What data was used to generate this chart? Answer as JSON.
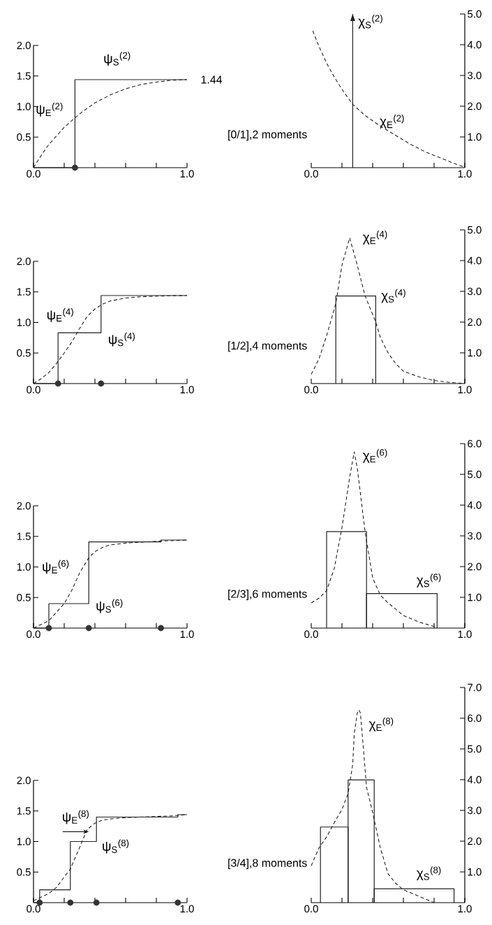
{
  "chart_data": [
    {
      "type": "line",
      "xlim": [
        0,
        1
      ],
      "ylim": [
        0,
        2
      ],
      "xticks": [
        {
          "value": 0,
          "label": "0.0"
        },
        {
          "value": 0.2,
          "label": null
        },
        {
          "value": 0.4,
          "label": null
        },
        {
          "value": 0.6,
          "label": null
        },
        {
          "value": 0.8,
          "label": null
        },
        {
          "value": 1,
          "label": "1.0"
        }
      ],
      "yticks": [
        {
          "value": 0.5,
          "label": "0.5"
        },
        {
          "value": 1,
          "label": "1.0"
        },
        {
          "value": 1.5,
          "label": "1.5"
        },
        {
          "value": 2,
          "label": "2.0"
        }
      ],
      "series": [
        {
          "name": "ψ$_{S}$$^{(2)}$",
          "type": "step",
          "color": "#222222",
          "line_style": "solid",
          "x": [
            0,
            0.27,
            1
          ],
          "values": [
            0,
            1.44,
            1.44
          ]
        },
        {
          "name": "ψ$_{E}$$^{(2)}$",
          "color": "#222222",
          "line_style": "dashed",
          "x": [
            0,
            0.05,
            0.1,
            0.2,
            0.3,
            0.4,
            0.5,
            0.6,
            0.7,
            0.8,
            0.9,
            1.0
          ],
          "values": [
            0,
            0.2,
            0.38,
            0.66,
            0.88,
            1.06,
            1.19,
            1.29,
            1.36,
            1.4,
            1.43,
            1.44
          ]
        },
        {
          "type": "scatter",
          "color": "#333333",
          "marker": "circle",
          "x": [
            0.27
          ],
          "values": [
            0
          ]
        }
      ],
      "annotations": [
        {
          "text": "1.44",
          "x": 1.0,
          "y": 1.44
        }
      ]
    },
    {
      "type": "line",
      "xlim": [
        0,
        1
      ],
      "ylim": [
        0,
        5
      ],
      "xticks": [
        {
          "value": 0,
          "label": "0.0"
        },
        {
          "value": 0.2,
          "label": null
        },
        {
          "value": 0.4,
          "label": null
        },
        {
          "value": 0.6,
          "label": null
        },
        {
          "value": 0.8,
          "label": null
        },
        {
          "value": 1,
          "label": "1.0"
        }
      ],
      "yticks": [
        {
          "value": 1,
          "label": "1.0"
        },
        {
          "value": 2,
          "label": "2.0"
        },
        {
          "value": 3,
          "label": "3.0"
        },
        {
          "value": 4,
          "label": "4.0"
        },
        {
          "value": 5,
          "label": "5.0"
        }
      ],
      "series": [
        {
          "name": "χ$_{E}$$^{(2)}$",
          "color": "#222222",
          "line_style": "dashed",
          "x": [
            0.01,
            0.05,
            0.1,
            0.15,
            0.2,
            0.27,
            0.35,
            0.45,
            0.55,
            0.65,
            0.75,
            0.85,
            0.95,
            1.0
          ],
          "values": [
            4.45,
            3.95,
            3.4,
            2.95,
            2.55,
            2.06,
            1.7,
            1.35,
            1.05,
            0.75,
            0.5,
            0.3,
            0.1,
            0.02
          ]
        }
      ],
      "ref_lines": [
        {
          "axis": "x",
          "value": 0.27,
          "label": "χ$_{S}$$^{(2)}$",
          "color": "#222222",
          "line_style": "solid"
        }
      ],
      "annotations": [
        "[0/1],2 moments"
      ]
    },
    {
      "type": "line",
      "xlim": [
        0,
        1
      ],
      "ylim": [
        0,
        2
      ],
      "xticks": [
        {
          "value": 0,
          "label": "0.0"
        },
        {
          "value": 0.2,
          "label": null
        },
        {
          "value": 0.4,
          "label": null
        },
        {
          "value": 0.6,
          "label": null
        },
        {
          "value": 0.8,
          "label": null
        },
        {
          "value": 1,
          "label": "1.0"
        }
      ],
      "yticks": [
        {
          "value": 0.5,
          "label": "0.5"
        },
        {
          "value": 1,
          "label": "1.0"
        },
        {
          "value": 1.5,
          "label": "1.5"
        },
        {
          "value": 2,
          "label": "2.0"
        }
      ],
      "series": [
        {
          "name": "ψ$_{S}$$^{(4)}$",
          "type": "step",
          "color": "#222222",
          "line_style": "solid",
          "x": [
            0,
            0.16,
            0.44,
            1
          ],
          "values": [
            0,
            0.83,
            1.44,
            1.44
          ]
        },
        {
          "name": "ψ$_{E}$$^{(4)}$",
          "color": "#222222",
          "line_style": "dashed",
          "x": [
            0,
            0.05,
            0.1,
            0.15,
            0.2,
            0.25,
            0.3,
            0.35,
            0.4,
            0.45,
            0.5,
            0.6,
            0.7,
            0.8,
            1.0
          ],
          "values": [
            0,
            0.08,
            0.18,
            0.33,
            0.5,
            0.68,
            0.9,
            1.1,
            1.22,
            1.3,
            1.35,
            1.4,
            1.42,
            1.43,
            1.44
          ]
        },
        {
          "type": "scatter",
          "color": "#333333",
          "marker": "circle",
          "x": [
            0.16,
            0.44
          ],
          "values": [
            0,
            0
          ]
        }
      ]
    },
    {
      "type": "line",
      "xlim": [
        0,
        1
      ],
      "ylim": [
        0,
        5
      ],
      "xticks": [
        {
          "value": 0,
          "label": "0.0"
        },
        {
          "value": 0.2,
          "label": null
        },
        {
          "value": 0.4,
          "label": null
        },
        {
          "value": 0.6,
          "label": null
        },
        {
          "value": 0.8,
          "label": null
        },
        {
          "value": 1,
          "label": "1.0"
        }
      ],
      "yticks": [
        {
          "value": 1,
          "label": "1.0"
        },
        {
          "value": 2,
          "label": "2.0"
        },
        {
          "value": 3,
          "label": "3.0"
        },
        {
          "value": 4,
          "label": "4.0"
        },
        {
          "value": 5,
          "label": "5.0"
        }
      ],
      "series": [
        {
          "name": "χ$_{E}$$^{(4)}$",
          "color": "#222222",
          "line_style": "dashed",
          "x": [
            0,
            0.05,
            0.1,
            0.16,
            0.2,
            0.25,
            0.3,
            0.35,
            0.42,
            0.45,
            0.5,
            0.55,
            0.6,
            0.7,
            0.8,
            0.9,
            1.0
          ],
          "values": [
            0.3,
            0.8,
            1.56,
            2.6,
            3.85,
            4.74,
            3.85,
            2.86,
            2.0,
            1.5,
            1.0,
            0.65,
            0.4,
            0.22,
            0.1,
            0.04,
            0
          ]
        },
        {
          "name": "χ$_{S}$$^{(4)}$",
          "type": "histogram",
          "color": "#222222",
          "bins": [
            0.16,
            0.42
          ],
          "values": [
            2.85
          ]
        }
      ],
      "annotations": [
        "[1/2],4 moments"
      ]
    },
    {
      "type": "line",
      "xlim": [
        0,
        1
      ],
      "ylim": [
        0,
        2
      ],
      "xticks": [
        {
          "value": 0,
          "label": "0.0"
        },
        {
          "value": 0.2,
          "label": null
        },
        {
          "value": 0.4,
          "label": null
        },
        {
          "value": 0.6,
          "label": null
        },
        {
          "value": 0.8,
          "label": null
        },
        {
          "value": 1,
          "label": "1.0"
        }
      ],
      "yticks": [
        {
          "value": 0.5,
          "label": "0.5"
        },
        {
          "value": 1,
          "label": "1.0"
        },
        {
          "value": 1.5,
          "label": "1.5"
        },
        {
          "value": 2,
          "label": "2.0"
        }
      ],
      "series": [
        {
          "name": "ψ$_{S}$$^{(6)}$",
          "type": "step",
          "color": "#222222",
          "line_style": "solid",
          "x": [
            0,
            0.1,
            0.36,
            0.83,
            1
          ],
          "values": [
            0,
            0.4,
            1.41,
            1.44,
            1.44
          ]
        },
        {
          "name": "ψ$_{E}$$^{(6)}$",
          "color": "#222222",
          "line_style": "dashed",
          "x": [
            0,
            0.1,
            0.2,
            0.25,
            0.3,
            0.36,
            0.4,
            0.45,
            0.5,
            0.6,
            0.8,
            0.9,
            1.0
          ],
          "values": [
            0,
            0.12,
            0.4,
            0.62,
            0.9,
            1.15,
            1.25,
            1.32,
            1.36,
            1.39,
            1.42,
            1.43,
            1.44
          ]
        },
        {
          "type": "scatter",
          "color": "#333333",
          "marker": "circle",
          "x": [
            0.1,
            0.36,
            0.83
          ],
          "values": [
            0,
            0,
            0
          ]
        }
      ]
    },
    {
      "type": "line",
      "xlim": [
        0,
        1
      ],
      "ylim": [
        0,
        6
      ],
      "xticks": [
        {
          "value": 0,
          "label": "0.0"
        },
        {
          "value": 0.2,
          "label": null
        },
        {
          "value": 0.4,
          "label": null
        },
        {
          "value": 0.6,
          "label": null
        },
        {
          "value": 0.8,
          "label": null
        },
        {
          "value": 1,
          "label": "1.0"
        }
      ],
      "yticks": [
        {
          "value": 1,
          "label": "1.0"
        },
        {
          "value": 2,
          "label": "2.0"
        },
        {
          "value": 3,
          "label": "3.0"
        },
        {
          "value": 4,
          "label": "4.0"
        },
        {
          "value": 5,
          "label": "5.0"
        },
        {
          "value": 6,
          "label": "6.0"
        }
      ],
      "series": [
        {
          "name": "χ$_{E}$$^{(6)}$",
          "color": "#222222",
          "line_style": "dashed",
          "x": [
            0,
            0.05,
            0.1,
            0.15,
            0.2,
            0.25,
            0.28,
            0.3,
            0.35,
            0.4,
            0.45,
            0.5,
            0.6,
            0.7,
            0.8,
            0.82
          ],
          "values": [
            0.82,
            0.97,
            1.22,
            1.94,
            3.27,
            4.9,
            5.73,
            5.2,
            3.16,
            1.63,
            1.07,
            0.82,
            0.41,
            0.2,
            0.05,
            0
          ]
        },
        {
          "name": "χ$_{S}$$^{(6)}$",
          "type": "histogram",
          "color": "#222222",
          "bins": [
            0.1,
            0.36,
            0.82
          ],
          "values": [
            3.14,
            1.12
          ]
        }
      ],
      "annotations": [
        "[2/3],6 moments"
      ]
    },
    {
      "type": "line",
      "xlim": [
        0,
        1
      ],
      "ylim": [
        0,
        2
      ],
      "xticks": [
        {
          "value": 0,
          "label": "0.0"
        },
        {
          "value": 0.2,
          "label": null
        },
        {
          "value": 0.4,
          "label": null
        },
        {
          "value": 0.6,
          "label": null
        },
        {
          "value": 0.8,
          "label": null
        },
        {
          "value": 1,
          "label": "1.0"
        }
      ],
      "yticks": [
        {
          "value": 0.5,
          "label": "0.5"
        },
        {
          "value": 1,
          "label": "1.0"
        },
        {
          "value": 1.5,
          "label": "1.5"
        },
        {
          "value": 2,
          "label": "2.0"
        }
      ],
      "series": [
        {
          "name": "ψ$_{S}$$^{(8)}$",
          "type": "step",
          "color": "#222222",
          "line_style": "solid",
          "x": [
            0,
            0.04,
            0.24,
            0.41,
            0.94,
            1
          ],
          "values": [
            0,
            0.21,
            1.0,
            1.4,
            1.44,
            1.44
          ]
        },
        {
          "name": "ψ$_{E}$$^{(8)}$",
          "color": "#222222",
          "line_style": "dashed",
          "x": [
            0,
            0.1,
            0.15,
            0.2,
            0.24,
            0.3,
            0.35,
            0.4,
            0.45,
            0.5,
            0.6,
            0.8,
            0.9,
            1.0
          ],
          "values": [
            0.03,
            0.15,
            0.25,
            0.42,
            0.55,
            0.9,
            1.2,
            1.3,
            1.35,
            1.37,
            1.39,
            1.41,
            1.42,
            1.44
          ]
        },
        {
          "type": "scatter",
          "color": "#333333",
          "marker": "circle",
          "x": [
            0.04,
            0.24,
            0.41,
            0.94
          ],
          "values": [
            0,
            0,
            0,
            0
          ]
        }
      ]
    },
    {
      "type": "line",
      "xlim": [
        0,
        1
      ],
      "ylim": [
        0,
        7
      ],
      "xticks": [
        {
          "value": 0,
          "label": "0.0"
        },
        {
          "value": 0.2,
          "label": null
        },
        {
          "value": 0.4,
          "label": null
        },
        {
          "value": 0.6,
          "label": null
        },
        {
          "value": 0.8,
          "label": null
        },
        {
          "value": 1,
          "label": "1.0"
        }
      ],
      "yticks": [
        {
          "value": 1,
          "label": "1.0"
        },
        {
          "value": 2,
          "label": "2.0"
        },
        {
          "value": 3,
          "label": "3.0"
        },
        {
          "value": 4,
          "label": "4.0"
        },
        {
          "value": 5,
          "label": "5.0"
        },
        {
          "value": 6,
          "label": "6.0"
        },
        {
          "value": 7,
          "label": "7.0"
        }
      ],
      "series": [
        {
          "name": "χ$_{E}$$^{(8)}$",
          "color": "#222222",
          "line_style": "dashed",
          "x": [
            0,
            0.05,
            0.1,
            0.15,
            0.2,
            0.24,
            0.27,
            0.28,
            0.3,
            0.31,
            0.32,
            0.34,
            0.36,
            0.4,
            0.45,
            0.5,
            0.55,
            0.6,
            0.7,
            0.8
          ],
          "values": [
            1.2,
            1.78,
            2.14,
            2.6,
            3.03,
            3.55,
            4.5,
            5.5,
            6.17,
            6.27,
            6.17,
            5.0,
            3.76,
            2.93,
            1.78,
            0.94,
            0.63,
            0.42,
            0.21,
            0
          ]
        },
        {
          "name": "χ$_{S}$$^{(8)}$",
          "type": "histogram",
          "color": "#222222",
          "bins": [
            0.06,
            0.24,
            0.41,
            0.93
          ],
          "values": [
            2.46,
            3.99,
            0.45
          ]
        }
      ],
      "annotations": [
        "[3/4],8 moments"
      ]
    }
  ]
}
